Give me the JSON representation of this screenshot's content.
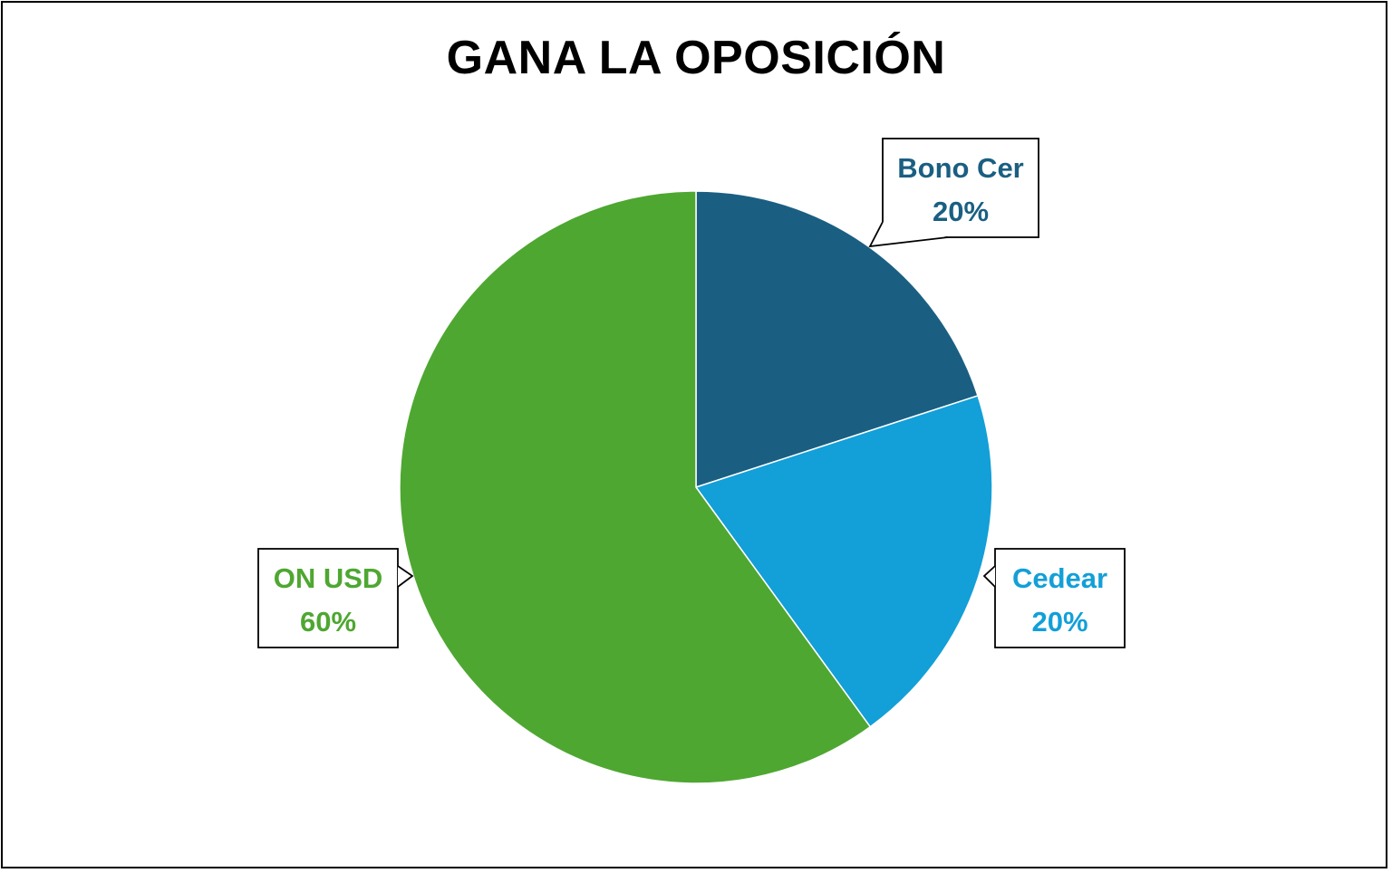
{
  "chart_data": {
    "type": "pie",
    "title": "GANA LA OPOSICIÓN",
    "slices": [
      {
        "label": "Bono Cer",
        "value": 20,
        "display": "20%",
        "color": "#1a5f82"
      },
      {
        "label": "Cedear",
        "value": 20,
        "display": "20%",
        "color": "#139fd8"
      },
      {
        "label": "ON USD",
        "value": 60,
        "display": "60%",
        "color": "#4ea731"
      }
    ],
    "start_angle_deg": 0,
    "direction": "clockwise",
    "data_labels": "callouts with category name and percentage",
    "legend": "none"
  }
}
